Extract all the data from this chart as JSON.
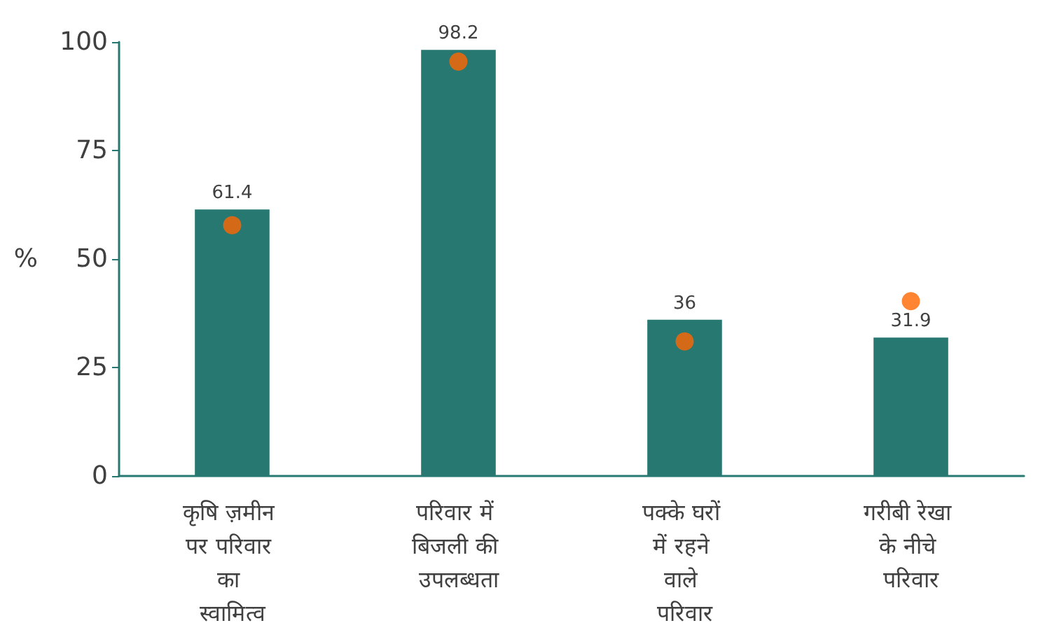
{
  "chart_data": {
    "type": "bar",
    "ylabel": "%",
    "categories": [
      "कृषि ज़मीन पर परिवार का स्वामित्व",
      "परिवार में बिजली की उपलब्धता",
      "पक्के घरों में रहने वाले परिवार",
      "गरीबी रेखा के नीचे परिवार"
    ],
    "series": [
      {
        "color": "#287872",
        "values": [
          61.4,
          98.2,
          36,
          31.9
        ],
        "value_labels": [
          "61.4",
          "98.2",
          "36",
          "31.9"
        ]
      },
      {
        "type": "scatter",
        "color": "#ff6600",
        "values": [
          57.8,
          95.5,
          31.0,
          40.3
        ]
      }
    ],
    "ylim": [
      0,
      100
    ],
    "yticks": [
      0,
      25,
      50,
      75,
      100
    ],
    "grid": false,
    "marker": "circle"
  }
}
